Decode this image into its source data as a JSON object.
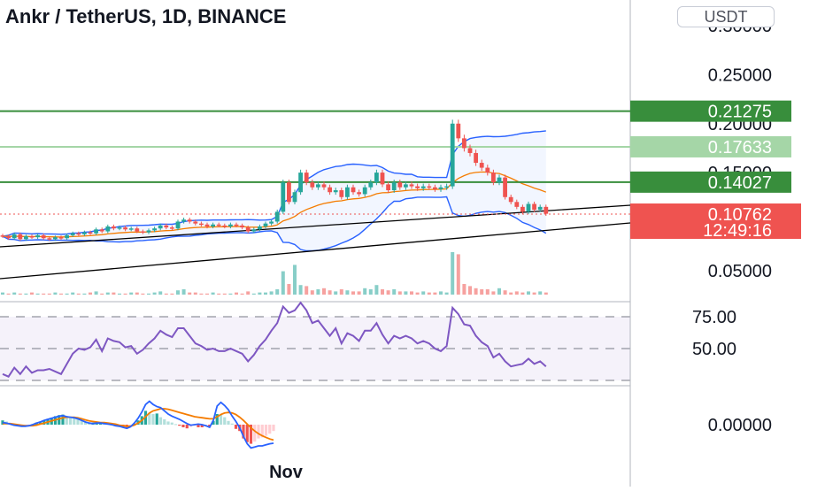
{
  "header": {
    "title": "Ankr / TetherUS, 1D, BINANCE",
    "currency_button": "USDT"
  },
  "colors": {
    "up": "#26a69a",
    "down": "#ef5350",
    "level_dark": "#388e3c",
    "level_light": "#a5d6a7",
    "bollinger": "#2962ff",
    "ema": "#f57c00",
    "rsi": "#7e57c2",
    "trendline": "#000000"
  },
  "chart_data": [
    {
      "type": "candlestick",
      "title": "Ankr / TetherUS, 1D, BINANCE",
      "y_axis_ticks": [
        "0.30000",
        "0.25000",
        "0.20000",
        "0.15000",
        "0.05000"
      ],
      "ylim": [
        0.02,
        0.31
      ],
      "x_axis_ticks": [
        "Nov"
      ],
      "horizontal_levels": [
        {
          "value": 0.21275,
          "label": "0.21275",
          "style": "dark-green"
        },
        {
          "value": 0.17633,
          "label": "0.17633",
          "style": "light-green"
        },
        {
          "value": 0.14027,
          "label": "0.14027",
          "style": "dark-green"
        }
      ],
      "last_price": {
        "value": 0.10762,
        "label": "0.10762",
        "countdown": "12:49:16"
      },
      "close": [
        0.085,
        0.083,
        0.087,
        0.082,
        0.085,
        0.084,
        0.086,
        0.083,
        0.082,
        0.084,
        0.083,
        0.086,
        0.088,
        0.087,
        0.089,
        0.088,
        0.092,
        0.09,
        0.095,
        0.093,
        0.094,
        0.092,
        0.093,
        0.09,
        0.089,
        0.091,
        0.093,
        0.096,
        0.094,
        0.093,
        0.1,
        0.102,
        0.1,
        0.098,
        0.097,
        0.095,
        0.097,
        0.096,
        0.095,
        0.097,
        0.096,
        0.094,
        0.09,
        0.092,
        0.095,
        0.098,
        0.1,
        0.11,
        0.14,
        0.12,
        0.13,
        0.15,
        0.14,
        0.135,
        0.138,
        0.135,
        0.13,
        0.132,
        0.125,
        0.135,
        0.13,
        0.128,
        0.135,
        0.14,
        0.15,
        0.138,
        0.132,
        0.14,
        0.135,
        0.138,
        0.136,
        0.134,
        0.136,
        0.135,
        0.133,
        0.135,
        0.136,
        0.2,
        0.185,
        0.175,
        0.17,
        0.16,
        0.155,
        0.15,
        0.14,
        0.145,
        0.125,
        0.12,
        0.115,
        0.11,
        0.118,
        0.112,
        0.115,
        0.108
      ],
      "volume": [
        2,
        1,
        2,
        1,
        1,
        2,
        1,
        1,
        1,
        2,
        1,
        1,
        2,
        1,
        1,
        2,
        3,
        1,
        2,
        2,
        1,
        1,
        2,
        2,
        1,
        1,
        2,
        3,
        1,
        1,
        4,
        5,
        2,
        2,
        1,
        1,
        2,
        1,
        1,
        1,
        2,
        1,
        3,
        1,
        2,
        2,
        3,
        5,
        22,
        10,
        28,
        9,
        8,
        4,
        5,
        6,
        4,
        3,
        5,
        4,
        3,
        3,
        6,
        5,
        9,
        5,
        4,
        5,
        3,
        3,
        3,
        2,
        3,
        2,
        2,
        3,
        2,
        40,
        38,
        10,
        8,
        6,
        5,
        5,
        3,
        6,
        4,
        2,
        3,
        2,
        3,
        2,
        3,
        2
      ],
      "rsi_levels": [
        "75.00",
        "50.00"
      ],
      "rsi": [
        30,
        28,
        35,
        30,
        36,
        31,
        33,
        33,
        34,
        32,
        30,
        38,
        46,
        50,
        49,
        51,
        57,
        48,
        58,
        56,
        55,
        51,
        52,
        46,
        49,
        54,
        58,
        64,
        61,
        59,
        66,
        66,
        60,
        54,
        52,
        49,
        50,
        48,
        48,
        50,
        48,
        46,
        40,
        45,
        52,
        57,
        64,
        70,
        83,
        78,
        80,
        86,
        80,
        70,
        72,
        66,
        60,
        66,
        54,
        62,
        60,
        56,
        64,
        64,
        70,
        61,
        54,
        60,
        58,
        60,
        58,
        54,
        56,
        54,
        50,
        48,
        52,
        82,
        77,
        69,
        68,
        60,
        55,
        52,
        43,
        46,
        40,
        36,
        37,
        38,
        42,
        38,
        40,
        36
      ],
      "macd_axis_tick": "0.00000",
      "macd_histogram": [
        0.8,
        0.6,
        0.2,
        -0.1,
        -0.2,
        -0.3,
        -0.2,
        -0.1,
        0.1,
        0.4,
        0.6,
        0.8,
        1.1,
        1.3,
        1.6,
        1.8,
        1.9,
        1.6,
        1.5,
        1.4,
        1.2,
        0.8,
        0.5,
        0.3,
        0.4,
        0.5,
        0.5,
        0.4,
        0.2,
        0,
        -0.2,
        -0.3,
        -0.5,
        -0.6,
        -0.3,
        0.2,
        0.8,
        1.6,
        2.6,
        2.2,
        2,
        2.1,
        1.4,
        1,
        0.6,
        0.4,
        0.1,
        -0.2,
        -0.5,
        -0.7,
        -0.4,
        -0.2,
        -0.5,
        -0.5,
        -0.3,
        -0.4,
        0.7,
        2,
        1.9,
        1.4,
        0.7,
        0.2,
        -0.8,
        -1.2,
        -2.6,
        -3.3,
        -3.6,
        -3.2,
        -2.6,
        -2.4,
        -2.1,
        -1.7,
        -1.2
      ],
      "macd_line": [
        0.4,
        0.3,
        0.1,
        -0.1,
        -0.2,
        -0.3,
        -0.3,
        -0.2,
        0,
        0.3,
        0.5,
        0.8,
        1,
        1.2,
        1.4,
        1.6,
        1.7,
        1.5,
        1.4,
        1.3,
        1.1,
        0.8,
        0.5,
        0.3,
        0.2,
        0.3,
        0.3,
        0.2,
        0.1,
        0,
        -0.2,
        -0.3,
        -0.5,
        -0.7,
        -0.4,
        0.3,
        1.2,
        2.4,
        3.8,
        4.4,
        3.8,
        3.4,
        3.2,
        2.6,
        2,
        1.6,
        1.3,
        1,
        0.6,
        0.2,
        -0.1,
        0,
        0.1,
        0,
        -0.2,
        -0.5,
        0.8,
        3.5,
        4.2,
        3.6,
        2.8,
        1.6,
        0.6,
        -0.6,
        -2.2,
        -3.6,
        -4.4,
        -4.2,
        -4,
        -4,
        -3.8,
        -3.6,
        -3.5
      ],
      "signal_line": [
        0.2,
        0.2,
        0.2,
        0.1,
        0,
        -0.1,
        -0.2,
        -0.2,
        -0.2,
        -0.1,
        0.1,
        0.3,
        0.5,
        0.7,
        0.9,
        1.1,
        1.3,
        1.4,
        1.4,
        1.4,
        1.3,
        1.1,
        0.9,
        0.7,
        0.6,
        0.5,
        0.4,
        0.4,
        0.3,
        0.2,
        0.1,
        -0.1,
        -0.2,
        -0.3,
        -0.3,
        -0.1,
        0.3,
        0.8,
        1.5,
        2.2,
        2.6,
        2.8,
        3,
        3,
        2.9,
        2.7,
        2.5,
        2.3,
        2.1,
        1.9,
        1.7,
        1.5,
        1.4,
        1.3,
        1.2,
        1.1,
        1.1,
        1.5,
        1.9,
        2.2,
        2.3,
        2.2,
        1.9,
        1.4,
        0.8,
        0.1,
        -0.6,
        -1.2,
        -1.7,
        -2.1,
        -2.4,
        -2.7,
        -2.9
      ]
    }
  ]
}
